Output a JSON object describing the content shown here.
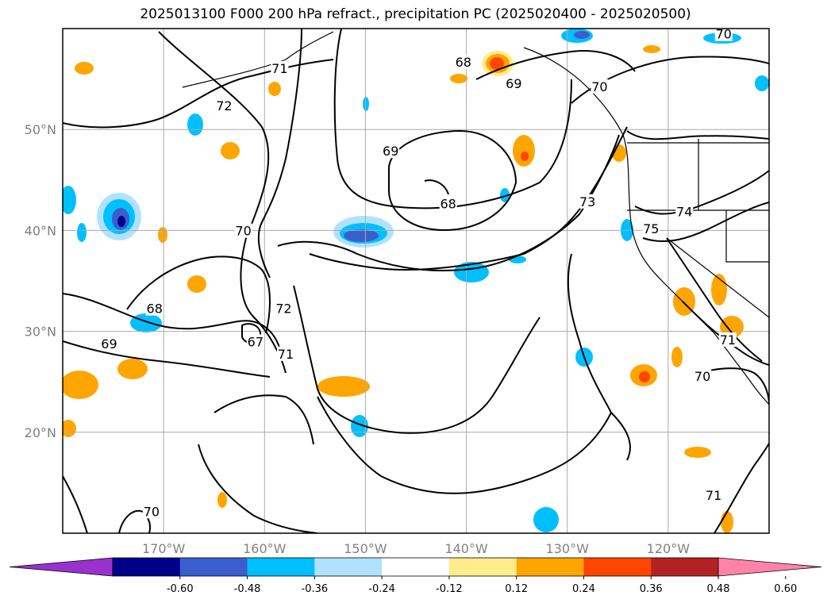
{
  "title": "2025013100 F000 200 hPa refract., precipitation PC (2025020400 - 2025020500)",
  "map": {
    "projection": "cylindrical",
    "lon_range": [
      -180,
      -110
    ],
    "lat_range": [
      10,
      60
    ],
    "grid": true,
    "lon_ticks": [
      {
        "lon": -170,
        "label": "170°W"
      },
      {
        "lon": -160,
        "label": "160°W"
      },
      {
        "lon": -150,
        "label": "150°W"
      },
      {
        "lon": -140,
        "label": "140°W"
      },
      {
        "lon": -130,
        "label": "130°W"
      },
      {
        "lon": -120,
        "label": "120°W"
      }
    ],
    "lat_ticks": [
      {
        "lat": 20,
        "label": "20°N"
      },
      {
        "lat": 30,
        "label": "30°N"
      },
      {
        "lat": 40,
        "label": "40°N"
      },
      {
        "lat": 50,
        "label": "50°N"
      }
    ],
    "contour_labels": [
      {
        "lon": -158.5,
        "lat": 56,
        "text": "71"
      },
      {
        "lon": -164,
        "lat": 52.3,
        "text": "72"
      },
      {
        "lon": -140.3,
        "lat": 56.6,
        "text": "68"
      },
      {
        "lon": -135.3,
        "lat": 54.5,
        "text": "69"
      },
      {
        "lon": -126.8,
        "lat": 54.2,
        "text": "70"
      },
      {
        "lon": -114.5,
        "lat": 59.4,
        "text": "70"
      },
      {
        "lon": -147.5,
        "lat": 47.8,
        "text": "69"
      },
      {
        "lon": -141.8,
        "lat": 42.6,
        "text": "68"
      },
      {
        "lon": -128,
        "lat": 42.8,
        "text": "73"
      },
      {
        "lon": -121.7,
        "lat": 40.1,
        "text": "75"
      },
      {
        "lon": -118.4,
        "lat": 41.8,
        "text": "74"
      },
      {
        "lon": -162.1,
        "lat": 39.9,
        "text": "70"
      },
      {
        "lon": -170.9,
        "lat": 32.2,
        "text": "68"
      },
      {
        "lon": -175.4,
        "lat": 28.7,
        "text": "69"
      },
      {
        "lon": -160.9,
        "lat": 28.9,
        "text": "67"
      },
      {
        "lon": -158.1,
        "lat": 32.2,
        "text": "72"
      },
      {
        "lon": -157.9,
        "lat": 27.7,
        "text": "71"
      },
      {
        "lon": -114.1,
        "lat": 29.1,
        "text": "71"
      },
      {
        "lon": -116.6,
        "lat": 25.5,
        "text": "70"
      },
      {
        "lon": -115.5,
        "lat": 13.7,
        "text": "71"
      },
      {
        "lon": -171.2,
        "lat": 12.1,
        "text": "70"
      }
    ]
  },
  "colorbar": {
    "colors": [
      "#9932cc",
      "#00008b",
      "#3a5fcd",
      "#00bfff",
      "#b0e2ff",
      "#ffffff",
      "#ffec8b",
      "#ffa500",
      "#ff4500",
      "#b22222",
      "#ff82ab"
    ],
    "ticks": [
      "-0.60",
      "-0.48",
      "-0.36",
      "-0.24",
      "-0.12",
      "0.12",
      "0.24",
      "0.36",
      "0.48",
      "0.60"
    ],
    "extend": "both"
  }
}
